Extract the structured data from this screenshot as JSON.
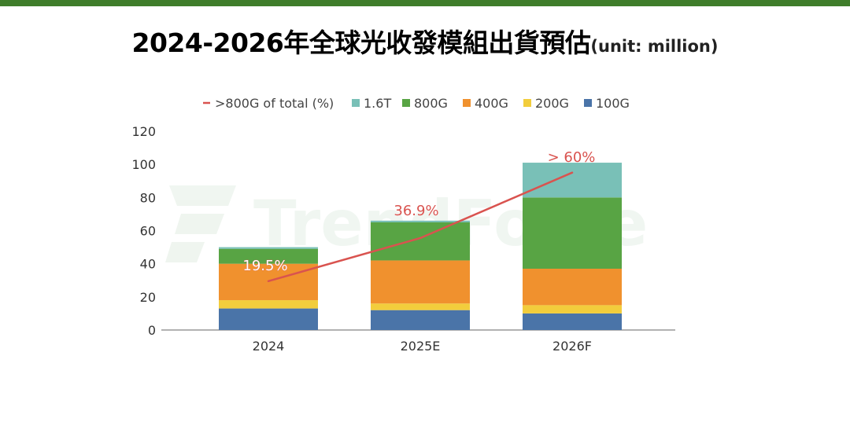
{
  "header": {
    "title": "2024-2026年全球光收發模組出貨預估",
    "unit": "(unit: million)"
  },
  "watermark": "TrendForce",
  "colors": {
    "topbar": "#3f7d2b",
    "series_100G": "#4a74a8",
    "series_200G": "#f2cd3c",
    "series_400G": "#f0912e",
    "series_800G": "#58a444",
    "series_1_6T": "#79c0b7",
    "line": "#d9534f",
    "axis": "#666666"
  },
  "chart_data": {
    "type": "bar",
    "stacked": true,
    "title": "2024-2026年全球光收發模組出貨預估",
    "unit": "(unit: million)",
    "categories": [
      "2024",
      "2025E",
      "2026F"
    ],
    "ylim": [
      0,
      120
    ],
    "yticks": [
      "0",
      "20",
      "40",
      "60",
      "80",
      "100",
      "120"
    ],
    "series": [
      {
        "name": "100G",
        "color": "#4a74a8",
        "values": [
          13,
          12,
          10
        ]
      },
      {
        "name": "200G",
        "color": "#f2cd3c",
        "values": [
          5,
          4,
          5
        ]
      },
      {
        "name": "400G",
        "color": "#f0912e",
        "values": [
          22,
          26,
          22
        ]
      },
      {
        "name": "800G",
        "color": "#58a444",
        "values": [
          9,
          23,
          43
        ]
      },
      {
        "name": "1.6T",
        "color": "#79c0b7",
        "values": [
          1,
          1,
          21
        ]
      }
    ],
    "line": {
      "name": ">800G of total (%)",
      "color": "#d9534f",
      "values": [
        29.5,
        55.5,
        95
      ],
      "labels": [
        "19.5%",
        "36.9%",
        "> 60%"
      ]
    },
    "legend": [
      ">800G of total (%)",
      "1.6T",
      "800G",
      "400G",
      "200G",
      "100G"
    ],
    "legend_position": "top",
    "grid": false
  }
}
